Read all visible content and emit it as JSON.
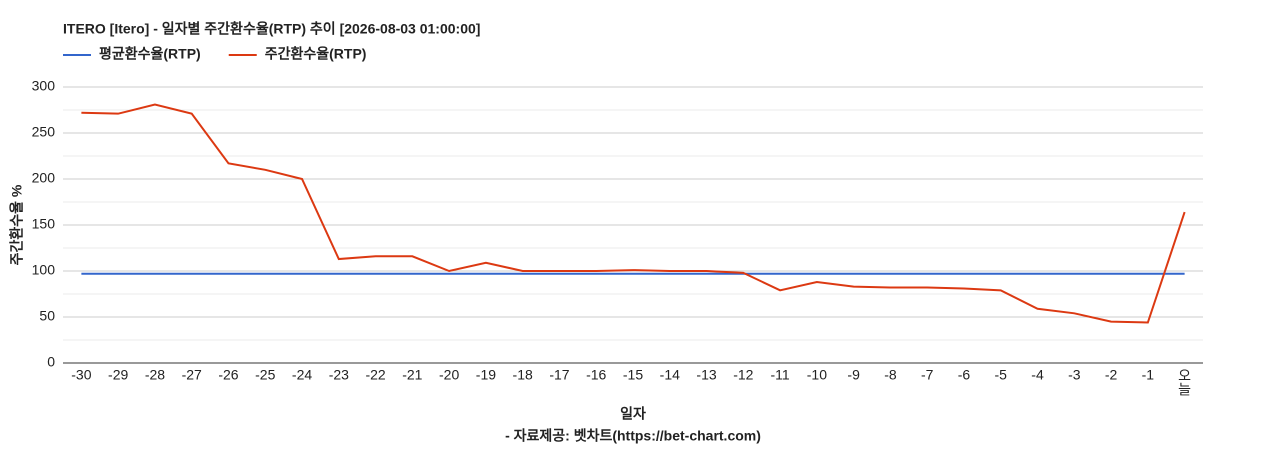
{
  "chart_data": {
    "type": "line",
    "title": "ITERO [Itero] - 일자별 주간환수율(RTP) 추이 [2026-08-03 01:00:00]",
    "x_label": "일자",
    "y_label": "주간환수율 %",
    "source": "- 자료제공: 벳차트(https://bet-chart.com)",
    "categories": [
      "-30",
      "-29",
      "-28",
      "-27",
      "-26",
      "-25",
      "-24",
      "-23",
      "-22",
      "-21",
      "-20",
      "-19",
      "-18",
      "-17",
      "-16",
      "-15",
      "-14",
      "-13",
      "-12",
      "-11",
      "-10",
      "-9",
      "-8",
      "-7",
      "-6",
      "-5",
      "-4",
      "-3",
      "-2",
      "-1",
      "오늘"
    ],
    "series": [
      {
        "name": "평균환수율(RTP)",
        "color": "#3366cc",
        "values": [
          97,
          97,
          97,
          97,
          97,
          97,
          97,
          97,
          97,
          97,
          97,
          97,
          97,
          97,
          97,
          97,
          97,
          97,
          97,
          97,
          97,
          97,
          97,
          97,
          97,
          97,
          97,
          97,
          97,
          97,
          97
        ]
      },
      {
        "name": "주간환수율(RTP)",
        "color": "#dc3912",
        "values": [
          272,
          271,
          281,
          271,
          217,
          210,
          200,
          113,
          116,
          116,
          100,
          109,
          100,
          100,
          100,
          101,
          100,
          100,
          98,
          79,
          88,
          83,
          82,
          82,
          81,
          79,
          59,
          54,
          45,
          44,
          164
        ]
      }
    ],
    "ylim": [
      0,
      300
    ],
    "yticks": [
      0,
      50,
      100,
      150,
      200,
      250,
      300
    ],
    "minor_yticks": [
      25,
      75,
      125,
      175,
      225,
      275
    ],
    "grid": true,
    "legend": "top-left"
  }
}
